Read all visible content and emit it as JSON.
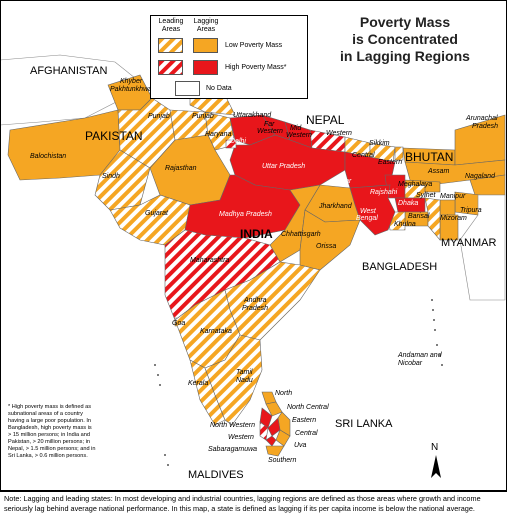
{
  "title_lines": [
    "Poverty Mass",
    "is Concentrated",
    "in Lagging Regions"
  ],
  "legend": {
    "col_leading": "Leading\nAreas",
    "col_leading_l1": "Leading",
    "col_leading_l2": "Areas",
    "col_lagging_l1": "Lagging",
    "col_lagging_l2": "Areas",
    "low": "Low Poverty Mass",
    "high": "High Poverty Mass*",
    "nodata": "No Data"
  },
  "colors": {
    "lagging_low": "#f5a623",
    "lagging_high": "#e8161b",
    "leading_low_stripe": "#f5a623",
    "leading_high_stripe": "#e8161b",
    "water": "#ffffff",
    "outside": "#ffffff"
  },
  "countries": {
    "afghanistan": "AFGHANISTAN",
    "pakistan": "PAKISTAN",
    "nepal": "NEPAL",
    "bhutan": "BHUTAN",
    "india": "INDIA",
    "myanmar": "MYANMAR",
    "bangladesh": "BANGLADESH",
    "sri_lanka": "SRI LANKA",
    "maldives": "MALDIVES"
  },
  "regions": {
    "khyber": "Khyber\nPakhtunkhwa",
    "khyber_l1": "Khyber",
    "khyber_l2": "Pakhtunkhwa",
    "punjab_pk": "Punjab",
    "punjab_in": "Punjab",
    "balochistan": "Balochistan",
    "sindh": "Sindh",
    "uttarakhand": "Uttarakhand",
    "haryana": "Haryana",
    "delhi": "Delhi",
    "far_western": "Far\nWestern",
    "far_western_l1": "Far",
    "far_western_l2": "Western",
    "mid_western": "Mid\nWestern",
    "mid_western_l1": "Mid",
    "mid_western_l2": "Western",
    "western_np": "Western",
    "central_np": "Central",
    "eastern_np": "Eastern",
    "sikkim": "Sikkim",
    "arunachal": "Arunachal\nPradesh",
    "arunachal_l1": "Arunachal",
    "arunachal_l2": "Pradesh",
    "rajasthan": "Rajasthan",
    "uttar_pradesh": "Uttar Pradesh",
    "bihar": "Bihar",
    "assam": "Assam",
    "nagaland": "Nagaland",
    "meghalaya": "Meghalaya",
    "sylhet": "Sylhet",
    "rajshahi": "Rajshahi",
    "dhaka": "Dhaka",
    "manipur": "Manipur",
    "gujarat": "Gujarat",
    "madhya_pradesh": "Madhya Pradesh",
    "jharkhand": "Jharkhand",
    "west_bengal": "West\nBengal",
    "west_bengal_l1": "West",
    "west_bengal_l2": "Bengal",
    "barisal": "Barisal",
    "khulna": "Khulna",
    "tripura": "Tripura",
    "mizoram": "Mizoram",
    "chhattisgarh": "Chhattisgarh",
    "orissa": "Orissa",
    "maharashtra": "Maharashtra",
    "andhra": "Andhra\nPradesh",
    "andhra_l1": "Andhra",
    "andhra_l2": "Pradesh",
    "goa": "Goa",
    "karnataka": "Karnataka",
    "andaman": "Andaman and\nNicobar",
    "andaman_l1": "Andaman and",
    "andaman_l2": "Nicobar",
    "kerala": "Kerala",
    "tamil_nadu": "Tamil\nNadu",
    "tamil_l1": "Tamil",
    "tamil_l2": "Nadu",
    "north_lk": "North",
    "north_central_lk": "North Central",
    "north_western_lk": "North Western",
    "eastern_lk": "Eastern",
    "western_lk": "Western",
    "central_lk": "Central",
    "uva_lk": "Uva",
    "sabaragamuwa_lk": "Sabaragamuwa",
    "southern_lk": "Southern"
  },
  "north_arrow": "N",
  "footnote": "* High poverty mass is defined as subnational areas of a country having a large poor population. In Bangladesh, high poverty mass is > 15 million persons; in India and Pakistan, > 20 million persons; in Nepal, > 1.5 million persons; and in Sri Lanka, > 0.6 million persons.",
  "note": "Note: Lagging and leading states: In most developing and industrial countries, lagging regions are defined as those areas where growth and income seriously lag behind average national performance. In this map, a state is defined as lagging if its per capita income is below the national average."
}
